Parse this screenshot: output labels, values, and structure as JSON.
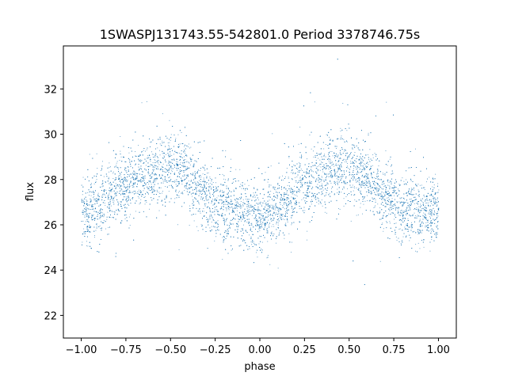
{
  "chart_data": {
    "type": "scatter",
    "title": "1SWASPJ131743.55-542801.0 Period 3378746.75s",
    "xlabel": "phase",
    "ylabel": "flux",
    "xlim": [
      -1.1,
      1.1
    ],
    "ylim": [
      21.0,
      33.9
    ],
    "x_ticks": [
      -1.0,
      -0.75,
      -0.5,
      -0.25,
      0.0,
      0.25,
      0.5,
      0.75,
      1.0
    ],
    "x_tick_labels": [
      "−1.00",
      "−0.75",
      "−0.50",
      "−0.25",
      "0.00",
      "0.25",
      "0.50",
      "0.75",
      "1.00"
    ],
    "y_ticks": [
      22,
      24,
      26,
      28,
      30,
      32
    ],
    "y_tick_labels": [
      "22",
      "24",
      "26",
      "28",
      "30",
      "32"
    ],
    "grid": false,
    "legend": "none",
    "point_color": "#1f77b4",
    "series": [
      {
        "x_range": [
          -1.0,
          1.0
        ],
        "mean_flux_profile": {
          "phase": [
            -1.0,
            -0.9,
            -0.8,
            -0.7,
            -0.6,
            -0.5,
            -0.4,
            -0.3,
            -0.2,
            -0.1,
            0.0,
            0.1,
            0.2,
            0.3,
            0.4,
            0.5,
            0.6,
            0.7,
            0.8,
            0.9,
            1.0
          ],
          "flux": [
            26.6,
            26.8,
            27.6,
            28.0,
            28.4,
            28.6,
            28.2,
            27.2,
            26.8,
            26.5,
            26.4,
            26.6,
            27.6,
            28.0,
            28.4,
            28.6,
            28.2,
            27.2,
            26.8,
            26.5,
            26.6
          ]
        }
      }
    ]
  }
}
